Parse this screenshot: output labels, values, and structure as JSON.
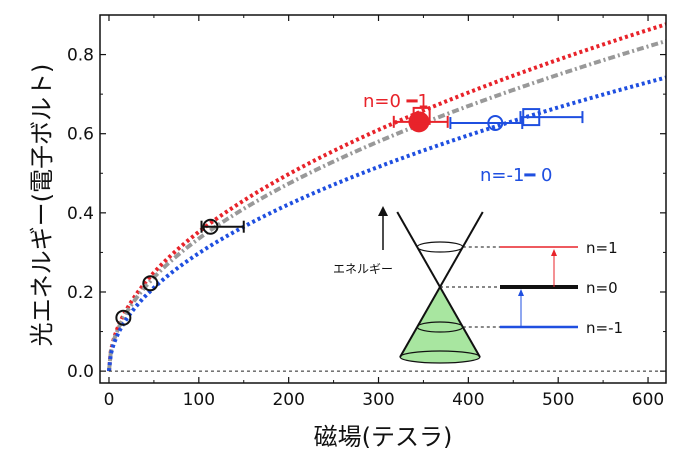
{
  "chart_data": {
    "type": "scatter",
    "xlabel": "磁場(テスラ)",
    "ylabel": "光エネルギー(電子ボルト)",
    "xlim": [
      -10,
      620
    ],
    "ylim": [
      -0.03,
      0.9
    ],
    "xticks": [
      0,
      100,
      200,
      300,
      400,
      500,
      600
    ],
    "yticks": [
      0.0,
      0.2,
      0.4,
      0.6,
      0.8
    ],
    "xtick_labels": [
      "0",
      "100",
      "200",
      "300",
      "400",
      "500",
      "600"
    ],
    "ytick_labels": [
      "0.0",
      "0.2",
      "0.4",
      "0.6",
      "0.8"
    ],
    "grid": false,
    "zero_line": "dashed",
    "curves": [
      {
        "label": "red dotted fit",
        "color": "#e8232a",
        "style": "dotted",
        "coef": 0.0352
      },
      {
        "label": "grey dash-dot fit",
        "color": "#999999",
        "style": "dash-dot",
        "coef": 0.0335
      },
      {
        "label": "blue dotted fit",
        "color": "#1f4fe0",
        "style": "dotted",
        "coef": 0.0298
      }
    ],
    "series": [
      {
        "color": "#111111",
        "marker": "open-circle",
        "points": [
          {
            "x": 16,
            "y": 0.135,
            "xerr": 0
          },
          {
            "x": 46,
            "y": 0.222,
            "xerr": 0
          },
          {
            "x": 113,
            "y": 0.365,
            "xerr": 0,
            "xerr_lo": 10,
            "xerr_hi": 37
          }
        ]
      },
      {
        "color": "#e8232a",
        "marker": "filled-circle",
        "points": [
          {
            "x": 345,
            "y": 0.63,
            "xerr_lo": 28,
            "xerr_hi": 32
          }
        ]
      },
      {
        "color": "#e8232a",
        "marker": "open-square",
        "points": [
          {
            "x": 348,
            "y": 0.645
          }
        ]
      },
      {
        "color": "#1f4fe0",
        "marker": "open-circle",
        "points": [
          {
            "x": 430,
            "y": 0.627,
            "xerr_lo": 50,
            "xerr_hi": 30
          }
        ]
      },
      {
        "color": "#1f4fe0",
        "marker": "open-square",
        "points": [
          {
            "x": 470,
            "y": 0.642,
            "xerr_lo": 12,
            "xerr_hi": 57
          }
        ]
      }
    ],
    "annotations": [
      {
        "text": "n=0 ━1",
        "color": "#e8232a"
      },
      {
        "text": "n=-1━ 0",
        "color": "#1f4fe0"
      }
    ],
    "inset": {
      "arrow_label": "エネルギー",
      "levels": [
        {
          "label": "n=1",
          "color": "#e8232a"
        },
        {
          "label": "n=0",
          "color": "#111111"
        },
        {
          "label": "n=-1",
          "color": "#1f4fe0"
        }
      ],
      "cone_fill": "#a8e6a0"
    }
  }
}
